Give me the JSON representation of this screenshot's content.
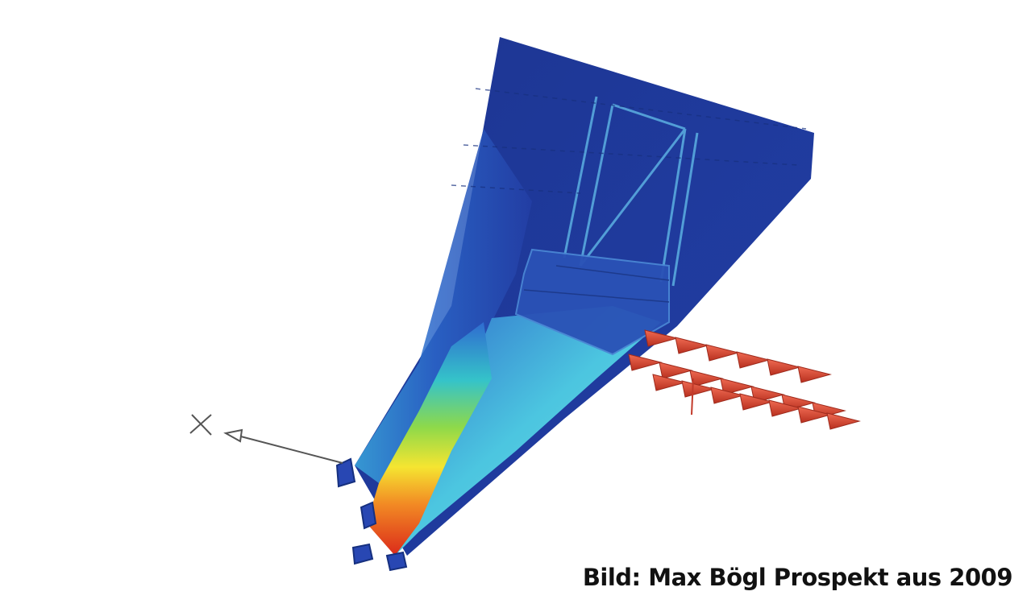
{
  "caption": "Bild: Max Bögl Prospekt aus 2009",
  "axis_label": "X",
  "colors": {
    "background": "#ffffff",
    "low_stress": "#1c3a9e",
    "mid_stress": "#3ec6e0",
    "high_stress": "#e23a1c",
    "load_arrows": "#d9412e",
    "caption_text": "#111111"
  },
  "icons": [
    "x-axis-marker-icon",
    "axis-arrow-icon",
    "load-arrow-icon"
  ]
}
